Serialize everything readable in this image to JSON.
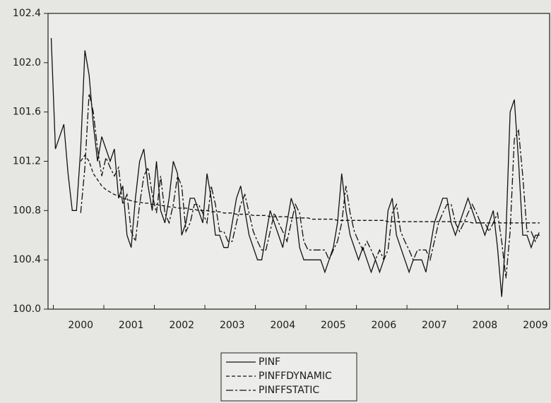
{
  "chart_data": {
    "type": "line",
    "categories": [
      null,
      null,
      null,
      null,
      null,
      null,
      null,
      "2000",
      null,
      null,
      null,
      null,
      null,
      null,
      null,
      null,
      null,
      null,
      null,
      "2001",
      null,
      null,
      null,
      null,
      null,
      null,
      null,
      null,
      null,
      null,
      null,
      "2002",
      null,
      null,
      null,
      null,
      null,
      null,
      null,
      null,
      null,
      null,
      null,
      "2003",
      null,
      null,
      null,
      null,
      null,
      null,
      null,
      null,
      null,
      null,
      null,
      "2004",
      null,
      null,
      null,
      null,
      null,
      null,
      null,
      null,
      null,
      null,
      null,
      "2005",
      null,
      null,
      null,
      null,
      null,
      null,
      null,
      null,
      null,
      null,
      null,
      "2006",
      null,
      null,
      null,
      null,
      null,
      null,
      null,
      null,
      null,
      null,
      null,
      "2007",
      null,
      null,
      null,
      null,
      null,
      null,
      null,
      null,
      null,
      null,
      null,
      "2008",
      null,
      null,
      null,
      null,
      null,
      null,
      null,
      null,
      null,
      null,
      null,
      "2009",
      null
    ],
    "ylim": [
      100.0,
      102.4
    ],
    "yticks": [
      {
        "value": 100.0,
        "label": "100.0"
      },
      100.4,
      100.8,
      101.2,
      101.6,
      {
        "value": 102.0,
        "label": "102.0"
      },
      102.4
    ],
    "legend": "bottom",
    "series": [
      {
        "name": "PINF",
        "color": "#111111",
        "line_style": "solid",
        "values": [
          102.2,
          101.3,
          101.4,
          101.5,
          101.1,
          100.8,
          100.8,
          101.3,
          102.1,
          101.9,
          101.5,
          101.2,
          101.4,
          101.3,
          101.2,
          101.3,
          100.9,
          101.0,
          100.6,
          100.5,
          100.9,
          101.2,
          101.3,
          101.0,
          100.8,
          101.2,
          100.8,
          100.7,
          100.9,
          101.2,
          101.1,
          100.6,
          100.7,
          100.9,
          100.9,
          100.8,
          100.7,
          101.1,
          100.9,
          100.6,
          100.6,
          100.5,
          100.5,
          100.7,
          100.9,
          101.0,
          100.8,
          100.6,
          100.5,
          100.4,
          100.4,
          100.6,
          100.8,
          100.7,
          100.6,
          100.5,
          100.7,
          100.9,
          100.8,
          100.5,
          100.4,
          100.4,
          100.4,
          100.4,
          100.4,
          100.3,
          100.4,
          100.5,
          100.7,
          101.1,
          100.8,
          100.6,
          100.5,
          100.4,
          100.5,
          100.4,
          100.3,
          100.4,
          100.3,
          100.4,
          100.8,
          100.9,
          100.6,
          100.5,
          100.4,
          100.3,
          100.4,
          100.4,
          100.4,
          100.3,
          100.5,
          100.7,
          100.8,
          100.9,
          100.9,
          100.7,
          100.6,
          100.7,
          100.8,
          100.9,
          100.8,
          100.7,
          100.7,
          100.6,
          100.7,
          100.8,
          100.5,
          100.1,
          100.6,
          101.6,
          101.7,
          101.2,
          100.6,
          100.6,
          100.5,
          100.6,
          100.6
        ]
      },
      {
        "name": "PINFFDYNAMIC",
        "color": "#111111",
        "line_style": "dashed",
        "values": [
          null,
          null,
          null,
          null,
          null,
          null,
          null,
          101.2,
          101.25,
          101.2,
          101.1,
          101.05,
          101.0,
          100.97,
          100.95,
          100.93,
          100.92,
          100.9,
          100.89,
          100.88,
          100.87,
          100.87,
          100.86,
          100.86,
          100.85,
          100.85,
          100.84,
          100.84,
          100.83,
          100.83,
          100.82,
          100.82,
          100.82,
          100.81,
          100.81,
          100.8,
          100.8,
          100.8,
          100.79,
          100.79,
          100.79,
          100.78,
          100.78,
          100.78,
          100.77,
          100.77,
          100.77,
          100.77,
          100.76,
          100.76,
          100.76,
          100.76,
          100.75,
          100.75,
          100.75,
          100.75,
          100.75,
          100.74,
          100.74,
          100.74,
          100.74,
          100.74,
          100.73,
          100.73,
          100.73,
          100.73,
          100.73,
          100.73,
          100.72,
          100.72,
          100.72,
          100.72,
          100.72,
          100.72,
          100.72,
          100.72,
          100.72,
          100.72,
          100.72,
          100.72,
          100.71,
          100.71,
          100.71,
          100.71,
          100.71,
          100.71,
          100.71,
          100.71,
          100.71,
          100.71,
          100.71,
          100.71,
          100.71,
          100.71,
          100.71,
          100.71,
          100.71,
          100.71,
          100.71,
          100.71,
          100.7,
          100.7,
          100.7,
          100.7,
          100.7,
          100.7,
          100.7,
          100.7,
          100.7,
          100.7,
          100.7,
          100.7,
          100.7,
          100.7,
          100.7,
          100.7,
          100.7
        ]
      },
      {
        "name": "PINFFSTATIC",
        "color": "#111111",
        "line_style": "longdash",
        "values": [
          null,
          null,
          null,
          null,
          null,
          null,
          null,
          100.78,
          101.15,
          101.75,
          101.6,
          101.3,
          101.08,
          101.23,
          101.15,
          101.08,
          101.15,
          100.85,
          100.93,
          100.63,
          100.55,
          100.85,
          101.08,
          101.15,
          100.93,
          100.78,
          101.08,
          100.78,
          100.7,
          100.85,
          101.08,
          101.0,
          100.63,
          100.7,
          100.85,
          100.85,
          100.78,
          100.7,
          101.0,
          100.85,
          100.63,
          100.63,
          100.55,
          100.55,
          100.7,
          100.85,
          100.93,
          100.78,
          100.63,
          100.55,
          100.48,
          100.48,
          100.63,
          100.78,
          100.7,
          100.63,
          100.55,
          100.7,
          100.85,
          100.78,
          100.55,
          100.48,
          100.48,
          100.48,
          100.48,
          100.48,
          100.4,
          100.48,
          100.55,
          100.7,
          101.0,
          100.78,
          100.63,
          100.55,
          100.48,
          100.55,
          100.48,
          100.4,
          100.48,
          100.4,
          100.48,
          100.78,
          100.85,
          100.63,
          100.55,
          100.48,
          100.4,
          100.48,
          100.48,
          100.48,
          100.4,
          100.55,
          100.7,
          100.78,
          100.85,
          100.85,
          100.7,
          100.63,
          100.7,
          100.78,
          100.85,
          100.78,
          100.7,
          100.7,
          100.63,
          100.7,
          100.78,
          100.55,
          100.25,
          100.63,
          101.38,
          101.45,
          101.08,
          100.63,
          100.63,
          100.55,
          100.63
        ]
      }
    ]
  }
}
